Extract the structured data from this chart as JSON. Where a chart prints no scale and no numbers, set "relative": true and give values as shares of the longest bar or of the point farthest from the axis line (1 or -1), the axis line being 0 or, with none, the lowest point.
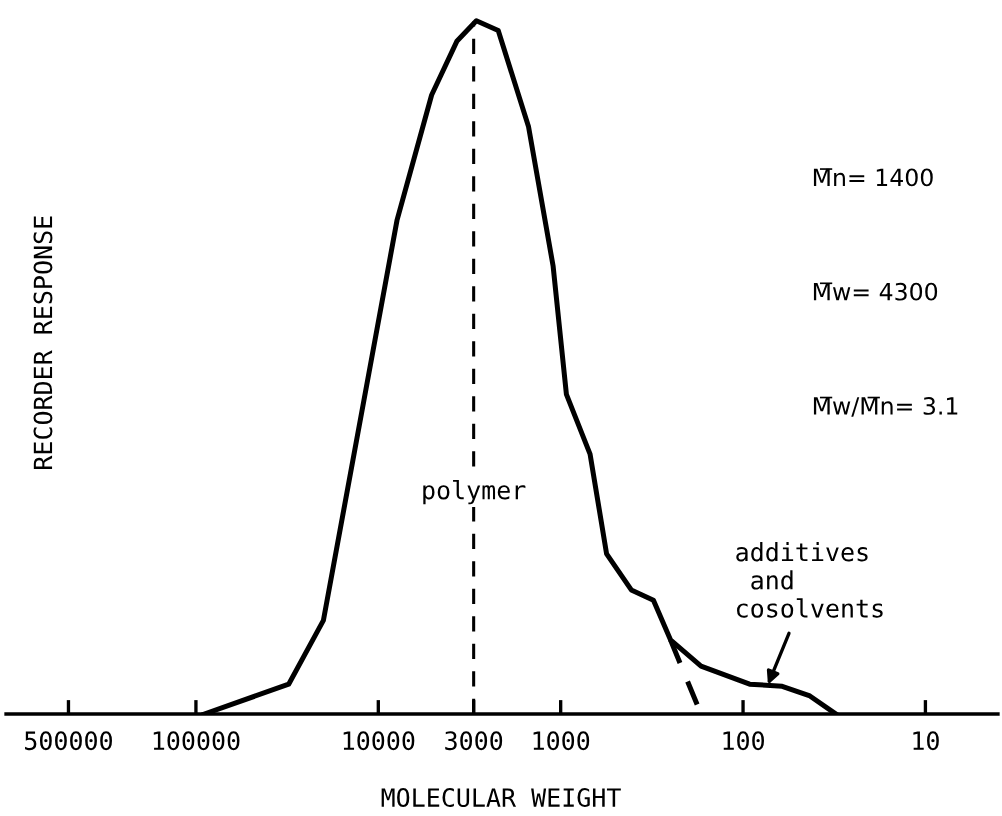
{
  "chart_data": {
    "type": "line",
    "relative": true,
    "log": "x",
    "xlabel": "MOLECULAR WEIGHT",
    "ylabel": "RECORDER RESPONSE",
    "xlim": [
      1100000,
      4
    ],
    "xticks": [
      500000,
      100000,
      10000,
      3000,
      1000,
      100,
      10
    ],
    "tick_labels": "x",
    "grid": false,
    "legend": false,
    "marker": "none",
    "series": [
      {
        "color": "#000000",
        "line_style": "solid",
        "x": [
          90000,
          31000,
          20000,
          12000,
          7900,
          5100,
          3700,
          2900,
          2200,
          1500,
          1100,
          930,
          690,
          560,
          410,
          310,
          250,
          170,
          92,
          61,
          43,
          31
        ],
        "values": [
          0,
          0.043,
          0.135,
          0.452,
          0.712,
          0.893,
          0.971,
          1.0,
          0.986,
          0.847,
          0.646,
          0.461,
          0.375,
          0.231,
          0.179,
          0.164,
          0.107,
          0.069,
          0.043,
          0.04,
          0.026,
          0
        ]
      },
      {
        "color": "#000000",
        "line_style": "dashed",
        "x": [
          250,
          170
        ],
        "values": [
          0.107,
          0
        ]
      }
    ],
    "ref_lines": [
      {
        "axis": "x",
        "value": 3000,
        "label": "polymer",
        "line_style": "dashed",
        "color": "#000000"
      }
    ],
    "annotations": [
      "M̅n= 1400",
      "M̅w= 4300",
      "M̅w/M̅n= 3.1",
      {
        "text": "additives\n and\ncosolvents",
        "x": 75,
        "y": 0.035
      }
    ]
  }
}
